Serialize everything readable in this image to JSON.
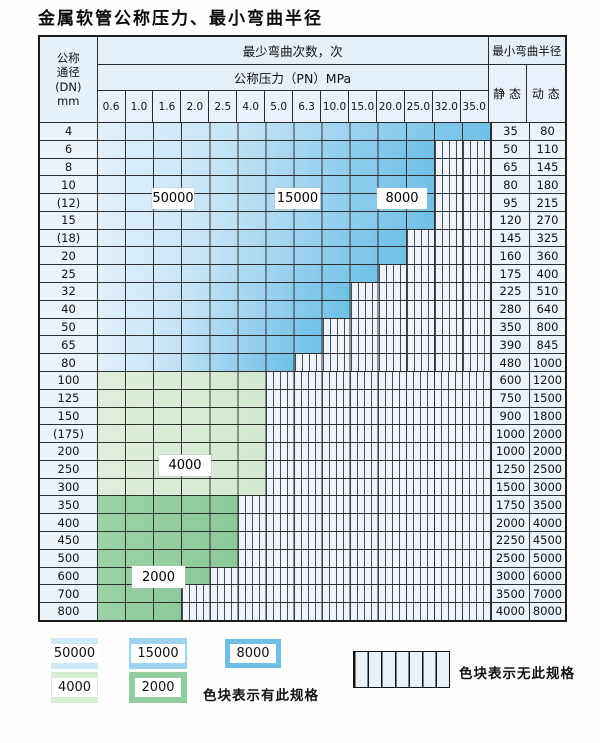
{
  "title": "金属软管公称压力、最小弯曲半径",
  "table": {
    "corner": {
      "line1": "公称",
      "line2": "通径",
      "line3": "(DN)",
      "line4": "mm"
    },
    "bend_cycles_header": "最少弯曲次数，次",
    "pressure_header": "公称压力（PN）MPa",
    "radius_header": "最小弯曲半径",
    "static_header": "静 态",
    "dynamic_header": "动 态",
    "pressure_columns": [
      "0.6",
      "1.0",
      "1.6",
      "2.0",
      "2.5",
      "4.0",
      "5.0",
      "6.3",
      "10.0",
      "15.0",
      "20.0",
      "25.0",
      "32.0",
      "35.0"
    ],
    "rows": [
      {
        "dn": "4",
        "colored_columns": 14,
        "zone": "blue",
        "static": "35",
        "dynamic": "80"
      },
      {
        "dn": "6",
        "colored_columns": 12,
        "zone": "blue",
        "static": "50",
        "dynamic": "110"
      },
      {
        "dn": "8",
        "colored_columns": 12,
        "zone": "blue",
        "static": "65",
        "dynamic": "145"
      },
      {
        "dn": "10",
        "colored_columns": 12,
        "zone": "blue",
        "static": "80",
        "dynamic": "180"
      },
      {
        "dn": "(12)",
        "colored_columns": 12,
        "zone": "blue",
        "static": "95",
        "dynamic": "215"
      },
      {
        "dn": "15",
        "colored_columns": 12,
        "zone": "blue",
        "static": "120",
        "dynamic": "270"
      },
      {
        "dn": "(18)",
        "colored_columns": 11,
        "zone": "blue",
        "static": "145",
        "dynamic": "325"
      },
      {
        "dn": "20",
        "colored_columns": 11,
        "zone": "blue",
        "static": "160",
        "dynamic": "360"
      },
      {
        "dn": "25",
        "colored_columns": 10,
        "zone": "blue",
        "static": "175",
        "dynamic": "400"
      },
      {
        "dn": "32",
        "colored_columns": 9,
        "zone": "blue",
        "static": "225",
        "dynamic": "510"
      },
      {
        "dn": "40",
        "colored_columns": 9,
        "zone": "blue",
        "static": "280",
        "dynamic": "640"
      },
      {
        "dn": "50",
        "colored_columns": 8,
        "zone": "blue",
        "static": "350",
        "dynamic": "800"
      },
      {
        "dn": "65",
        "colored_columns": 8,
        "zone": "blue",
        "static": "390",
        "dynamic": "845"
      },
      {
        "dn": "80",
        "colored_columns": 7,
        "zone": "blue",
        "static": "480",
        "dynamic": "1000"
      },
      {
        "dn": "100",
        "colored_columns": 6,
        "zone": "green_light",
        "static": "600",
        "dynamic": "1200"
      },
      {
        "dn": "125",
        "colored_columns": 6,
        "zone": "green_light",
        "static": "750",
        "dynamic": "1500"
      },
      {
        "dn": "150",
        "colored_columns": 6,
        "zone": "green_light",
        "static": "900",
        "dynamic": "1800"
      },
      {
        "dn": "(175)",
        "colored_columns": 6,
        "zone": "green_light",
        "static": "1000",
        "dynamic": "2000"
      },
      {
        "dn": "200",
        "colored_columns": 6,
        "zone": "green_light",
        "static": "1000",
        "dynamic": "2000"
      },
      {
        "dn": "250",
        "colored_columns": 6,
        "zone": "green_light",
        "static": "1250",
        "dynamic": "2500"
      },
      {
        "dn": "300",
        "colored_columns": 6,
        "zone": "green_light",
        "static": "1500",
        "dynamic": "3000"
      },
      {
        "dn": "350",
        "colored_columns": 5,
        "zone": "green_mid",
        "static": "1750",
        "dynamic": "3500"
      },
      {
        "dn": "400",
        "colored_columns": 5,
        "zone": "green_mid",
        "static": "2000",
        "dynamic": "4000"
      },
      {
        "dn": "450",
        "colored_columns": 5,
        "zone": "green_mid",
        "static": "2250",
        "dynamic": "4500"
      },
      {
        "dn": "500",
        "colored_columns": 5,
        "zone": "green_mid",
        "static": "2500",
        "dynamic": "5000"
      },
      {
        "dn": "600",
        "colored_columns": 4,
        "zone": "green_mid",
        "static": "3000",
        "dynamic": "6000"
      },
      {
        "dn": "700",
        "colored_columns": 3,
        "zone": "green_mid",
        "static": "3500",
        "dynamic": "7000"
      },
      {
        "dn": "800",
        "colored_columns": 3,
        "zone": "green_mid",
        "static": "4000",
        "dynamic": "8000"
      }
    ]
  },
  "overlays": {
    "l50000": "50000",
    "l15000": "15000",
    "l8000": "8000",
    "l4000": "4000",
    "l2000": "2000"
  },
  "legend": {
    "swatch_50000": "50000",
    "swatch_15000": "15000",
    "swatch_8000": "8000",
    "swatch_4000": "4000",
    "swatch_2000": "2000",
    "has_spec_text": "色块表示有此规格",
    "no_spec_text": "色块表示无此规格"
  },
  "colors": {
    "blue_light": "#cfe8f8",
    "blue_mid": "#9dd3f0",
    "blue_dark": "#6ebfe6",
    "green_light": "#d7ebd5",
    "green_mid": "#90cc9d",
    "header_bg": "#e4eff8",
    "hatch_bg": "#edf4fb",
    "grid_line": "#333333"
  }
}
